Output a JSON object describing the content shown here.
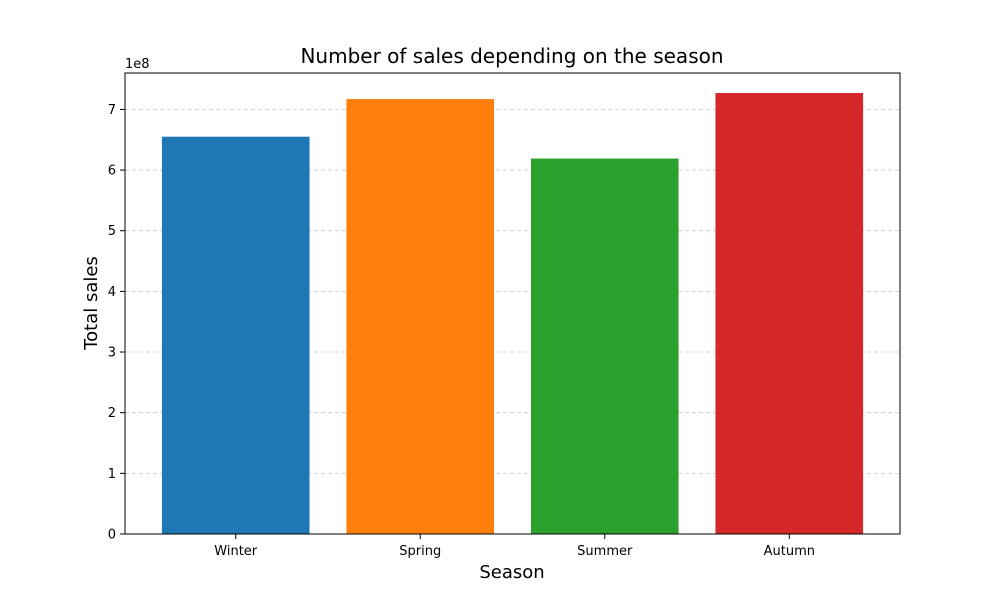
{
  "chart_data": {
    "type": "bar",
    "title": "Number of sales depending on the season",
    "xlabel": "Season",
    "ylabel": "Total sales",
    "y_offset_label": "1e8",
    "y_scale": 100000000,
    "categories": [
      "Winter",
      "Spring",
      "Summer",
      "Autumn"
    ],
    "values": [
      655000000,
      717000000,
      619000000,
      727000000
    ],
    "colors": [
      "#1f77b4",
      "#ff7f0e",
      "#2ca02c",
      "#d62728"
    ],
    "ylim": [
      0,
      760000000
    ],
    "yticks": [
      0,
      1,
      2,
      3,
      4,
      5,
      6,
      7
    ],
    "grid": "y-dashed",
    "legend": "none"
  }
}
